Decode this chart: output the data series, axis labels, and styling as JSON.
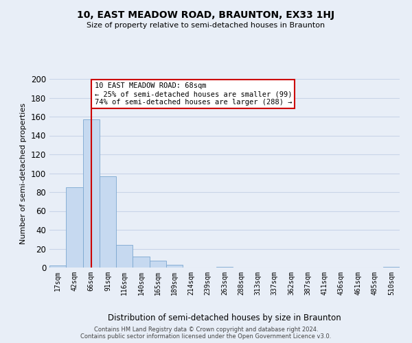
{
  "title": "10, EAST MEADOW ROAD, BRAUNTON, EX33 1HJ",
  "subtitle": "Size of property relative to semi-detached houses in Braunton",
  "xlabel": "Distribution of semi-detached houses by size in Braunton",
  "ylabel": "Number of semi-detached properties",
  "bin_labels": [
    "17sqm",
    "42sqm",
    "66sqm",
    "91sqm",
    "116sqm",
    "140sqm",
    "165sqm",
    "189sqm",
    "214sqm",
    "239sqm",
    "263sqm",
    "288sqm",
    "313sqm",
    "337sqm",
    "362sqm",
    "387sqm",
    "411sqm",
    "436sqm",
    "461sqm",
    "485sqm",
    "510sqm"
  ],
  "bar_heights": [
    2,
    85,
    157,
    97,
    24,
    12,
    7,
    3,
    0,
    0,
    1,
    0,
    0,
    0,
    0,
    0,
    0,
    0,
    0,
    0,
    1
  ],
  "bar_color": "#c6d9f0",
  "bar_edge_color": "#7ba7d0",
  "red_line_x": 2,
  "annotation_title": "10 EAST MEADOW ROAD: 68sqm",
  "annotation_line1": "← 25% of semi-detached houses are smaller (99)",
  "annotation_line2": "74% of semi-detached houses are larger (288) →",
  "annotation_box_color": "#ffffff",
  "annotation_box_edge": "#cc0000",
  "red_line_color": "#cc0000",
  "ylim": [
    0,
    200
  ],
  "yticks": [
    0,
    20,
    40,
    60,
    80,
    100,
    120,
    140,
    160,
    180,
    200
  ],
  "grid_color": "#c8d4e8",
  "footer_line1": "Contains HM Land Registry data © Crown copyright and database right 2024.",
  "footer_line2": "Contains public sector information licensed under the Open Government Licence v3.0.",
  "bg_color": "#e8eef7"
}
